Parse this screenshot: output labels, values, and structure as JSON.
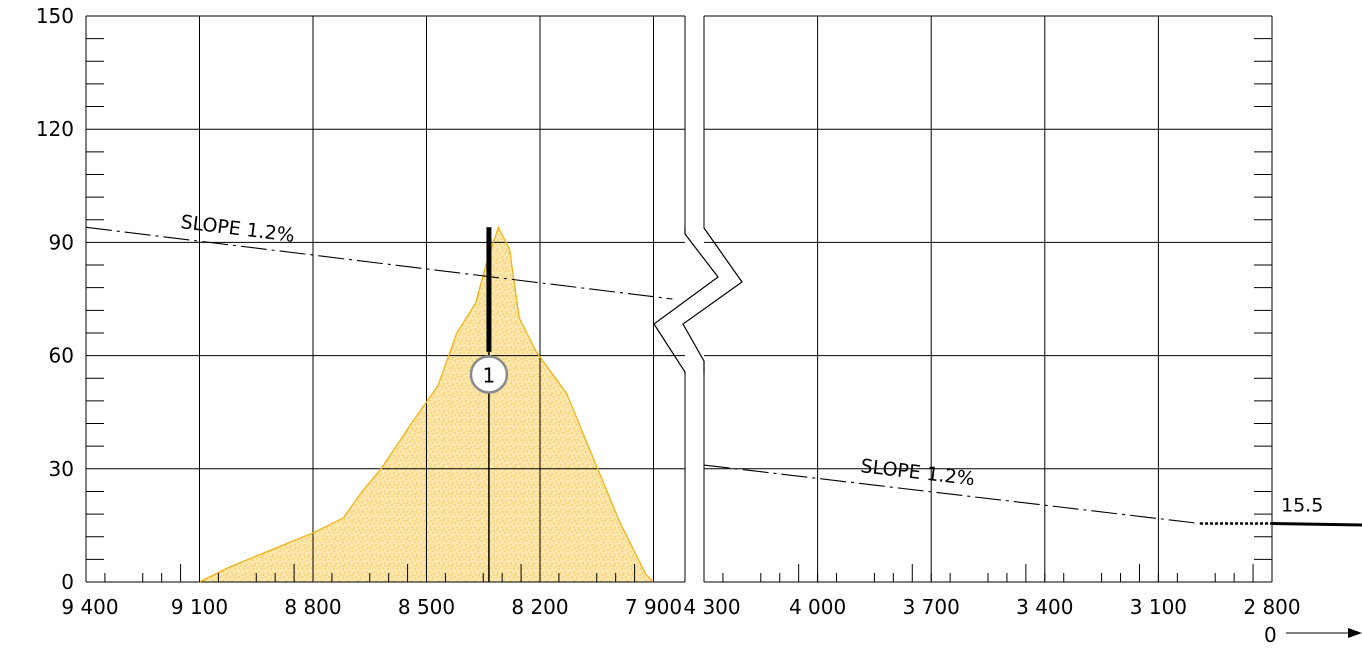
{
  "chart_data": {
    "type": "area",
    "panels": [
      {
        "name": "left",
        "x_ticks": [
          9400,
          9100,
          8800,
          8500,
          8200,
          7900
        ],
        "x_tick_labels": [
          "9 400",
          "9 100",
          "8 800",
          "8 500",
          "8 200",
          "7 900"
        ],
        "xlim": [
          9400,
          7850
        ],
        "profile_x": [
          9100,
          9020,
          8800,
          8720,
          8670,
          8620,
          8540,
          8470,
          8420,
          8370,
          8340,
          8310,
          8280,
          8255,
          8210,
          8130,
          8060,
          7990,
          7920,
          7900
        ],
        "profile_y": [
          0,
          4,
          13,
          17,
          24,
          30,
          42,
          52,
          66,
          74,
          85,
          94,
          88,
          70,
          61,
          50,
          33,
          16,
          2,
          0
        ],
        "slope_line": {
          "x": [
            9400,
            7850
          ],
          "y": [
            94,
            75
          ]
        },
        "slope_label": "SLOPE 1.2%",
        "marker": {
          "x": 8335,
          "y_from": 61,
          "y_to": 94,
          "label_y": 55,
          "label": "1"
        }
      },
      {
        "name": "right",
        "x_ticks": [
          4300,
          4000,
          3700,
          3400,
          3100,
          2800
        ],
        "x_tick_labels": [
          "4 300",
          "4 000",
          "3 700",
          "3 400",
          "3 100",
          "2 800"
        ],
        "xlim": [
          4300,
          2800
        ],
        "slope_line": {
          "x": [
            4300,
            2990
          ],
          "y": [
            31,
            15.5
          ]
        },
        "slope_label": "SLOPE 1.2%",
        "level_line": {
          "x_start": 2990,
          "y": 15.5,
          "label": "15.5"
        }
      }
    ],
    "y_ticks": [
      0,
      30,
      60,
      90,
      120,
      150
    ],
    "y_tick_labels": [
      "0",
      "30",
      "60",
      "90",
      "120",
      "150"
    ],
    "ylim": [
      0,
      150
    ],
    "grid": true,
    "axis_break": true,
    "origin_label": "0",
    "colors": {
      "profile": "#f2b417",
      "profile_fill": "#fbe6ad",
      "grid": "#000000",
      "marker_circle": "#8a8a8a"
    }
  }
}
